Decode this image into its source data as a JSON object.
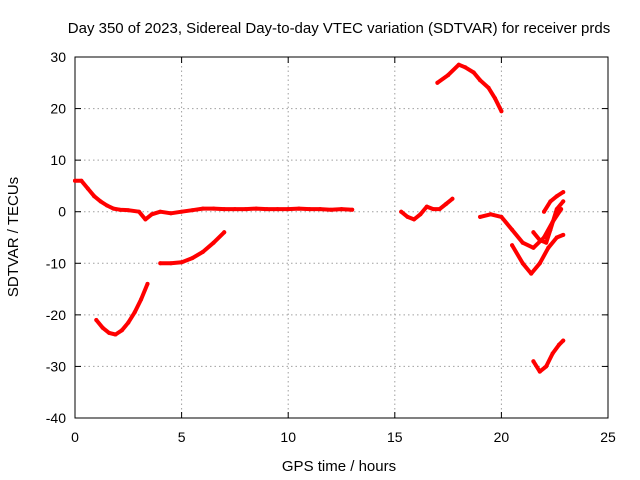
{
  "chart_data": {
    "type": "scatter",
    "title": "Day 350 of 2023, Sidereal Day-to-day VTEC variation (SDTVAR) for receiver prds",
    "xlabel": "GPS time / hours",
    "ylabel": "SDTVAR / TECUs",
    "xlim": [
      0,
      25
    ],
    "ylim": [
      -40,
      30
    ],
    "xticks": [
      0,
      5,
      10,
      15,
      20,
      25
    ],
    "yticks": [
      -40,
      -30,
      -20,
      -10,
      0,
      10,
      20,
      30
    ],
    "grid": true,
    "legend": "none",
    "series": [
      {
        "color": "#ff0000",
        "x": [
          0.0,
          0.3,
          0.6,
          0.9,
          1.2,
          1.5,
          1.8,
          2.1,
          2.5,
          3.0,
          3.3,
          3.6,
          4.0,
          4.5,
          5.0,
          5.5,
          6.0,
          6.5,
          7.0,
          7.5,
          8.0,
          8.5,
          9.0,
          9.5,
          10.0,
          10.5,
          11.0,
          11.5,
          12.0,
          12.5,
          13.0
        ],
        "y": [
          6.0,
          6.0,
          4.5,
          3.0,
          2.0,
          1.2,
          0.6,
          0.4,
          0.3,
          0.0,
          -1.5,
          -0.5,
          0.0,
          -0.3,
          0.0,
          0.3,
          0.6,
          0.6,
          0.5,
          0.5,
          0.5,
          0.6,
          0.5,
          0.5,
          0.5,
          0.6,
          0.5,
          0.5,
          0.4,
          0.5,
          0.4
        ]
      },
      {
        "color": "#ff0000",
        "x": [
          1.0,
          1.3,
          1.6,
          1.9,
          2.2,
          2.5,
          2.8,
          3.1,
          3.4
        ],
        "y": [
          -21.0,
          -22.5,
          -23.5,
          -23.8,
          -23.0,
          -21.5,
          -19.5,
          -17.0,
          -14.0
        ]
      },
      {
        "color": "#ff0000",
        "x": [
          4.0,
          4.5,
          5.0,
          5.5,
          6.0,
          6.5,
          7.0
        ],
        "y": [
          -10.0,
          -10.0,
          -9.8,
          -9.0,
          -7.8,
          -6.0,
          -4.0
        ]
      },
      {
        "color": "#ff0000",
        "x": [
          15.3,
          15.6,
          15.9,
          16.2,
          16.5,
          16.8,
          17.1,
          17.4,
          17.7
        ],
        "y": [
          0.0,
          -1.0,
          -1.5,
          -0.5,
          1.0,
          0.5,
          0.5,
          1.5,
          2.5
        ]
      },
      {
        "color": "#ff0000",
        "x": [
          17.0,
          17.5,
          18.0,
          18.3,
          18.7,
          19.0,
          19.4,
          19.7,
          20.0
        ],
        "y": [
          25.0,
          26.5,
          28.5,
          28.0,
          27.0,
          25.5,
          24.0,
          22.0,
          19.5
        ]
      },
      {
        "color": "#ff0000",
        "x": [
          19.0,
          19.5,
          20.0,
          20.5,
          21.0,
          21.5,
          22.0,
          22.4,
          22.8
        ],
        "y": [
          -1.0,
          -0.5,
          -1.0,
          -3.5,
          -6.0,
          -7.0,
          -5.0,
          -2.0,
          0.5
        ]
      },
      {
        "color": "#ff0000",
        "x": [
          20.5,
          21.0,
          21.4,
          21.8,
          22.2,
          22.6,
          22.9
        ],
        "y": [
          -6.5,
          -10.0,
          -12.0,
          -10.0,
          -7.0,
          -5.0,
          -4.5
        ]
      },
      {
        "color": "#ff0000",
        "x": [
          21.5,
          21.8,
          22.1,
          22.3,
          22.6,
          22.9
        ],
        "y": [
          -4.0,
          -5.5,
          -6.0,
          -3.5,
          0.5,
          2.0
        ]
      },
      {
        "color": "#ff0000",
        "x": [
          22.0,
          22.3,
          22.6,
          22.9
        ],
        "y": [
          0.0,
          2.0,
          3.0,
          3.8
        ]
      },
      {
        "color": "#ff0000",
        "x": [
          21.5,
          21.8,
          22.1,
          22.4,
          22.7,
          22.9
        ],
        "y": [
          -29.0,
          -31.0,
          -30.0,
          -27.5,
          -25.8,
          -25.0
        ]
      }
    ]
  }
}
